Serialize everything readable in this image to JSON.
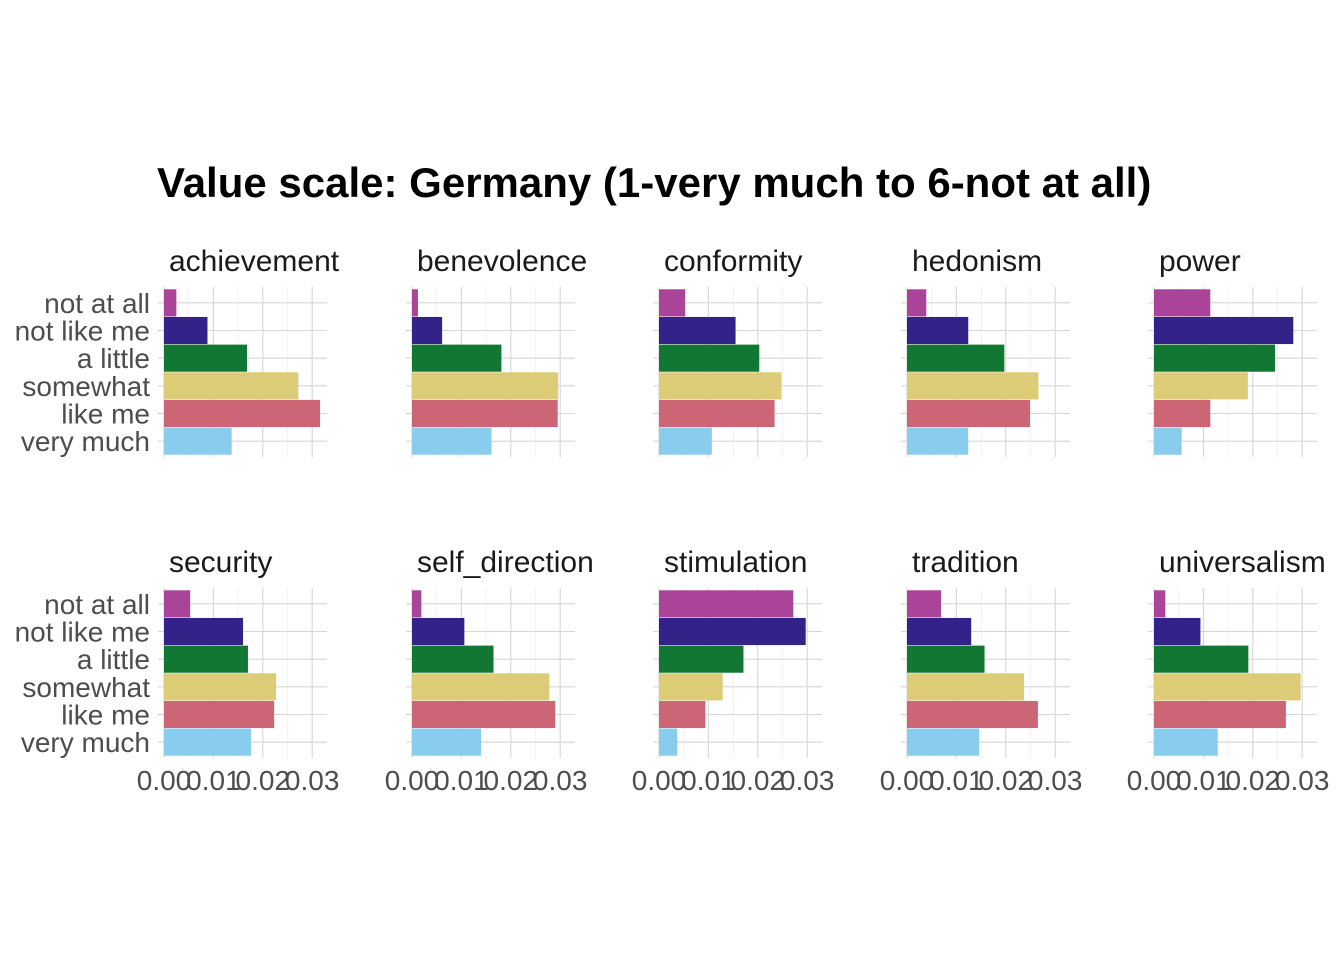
{
  "chart_data": {
    "type": "bar",
    "orientation": "horizontal",
    "title": "Value scale: Germany (1-very much to 6-not at all)",
    "xlabel": "",
    "ylabel": "",
    "xlim": [
      0,
      0.033
    ],
    "x_ticks": [
      0.0,
      0.01,
      0.02,
      0.03
    ],
    "x_tick_labels": [
      "0.00",
      "0.01",
      "0.02",
      "0.03"
    ],
    "grid": true,
    "legend": "none",
    "categories": [
      "not at all",
      "not like me",
      "a little",
      "somewhat",
      "like me",
      "very much"
    ],
    "category_colors": [
      "#AA4499",
      "#332288",
      "#117733",
      "#DDCC77",
      "#CC6677",
      "#88CCEE"
    ],
    "facets": [
      {
        "name": "achievement",
        "values": [
          0.0025,
          0.0088,
          0.0168,
          0.0272,
          0.0316,
          0.0137
        ]
      },
      {
        "name": "benevolence",
        "values": [
          0.0012,
          0.0061,
          0.0181,
          0.0296,
          0.0295,
          0.0161
        ]
      },
      {
        "name": "conformity",
        "values": [
          0.0053,
          0.0155,
          0.0203,
          0.0248,
          0.0234,
          0.0107
        ]
      },
      {
        "name": "hedonism",
        "values": [
          0.0039,
          0.0124,
          0.0197,
          0.0266,
          0.0249,
          0.0124
        ]
      },
      {
        "name": "power",
        "values": [
          0.0114,
          0.0282,
          0.0245,
          0.019,
          0.0114,
          0.0056
        ]
      },
      {
        "name": "security",
        "values": [
          0.0053,
          0.016,
          0.017,
          0.0227,
          0.0223,
          0.0176
        ]
      },
      {
        "name": "self_direction",
        "values": [
          0.0019,
          0.0106,
          0.0165,
          0.0278,
          0.029,
          0.014
        ]
      },
      {
        "name": "stimulation",
        "values": [
          0.0272,
          0.0297,
          0.0171,
          0.0129,
          0.0094,
          0.0037
        ]
      },
      {
        "name": "tradition",
        "values": [
          0.0069,
          0.013,
          0.0157,
          0.0237,
          0.0265,
          0.0146
        ]
      },
      {
        "name": "universalism",
        "values": [
          0.0023,
          0.0094,
          0.0191,
          0.0297,
          0.0267,
          0.0129
        ]
      }
    ]
  }
}
